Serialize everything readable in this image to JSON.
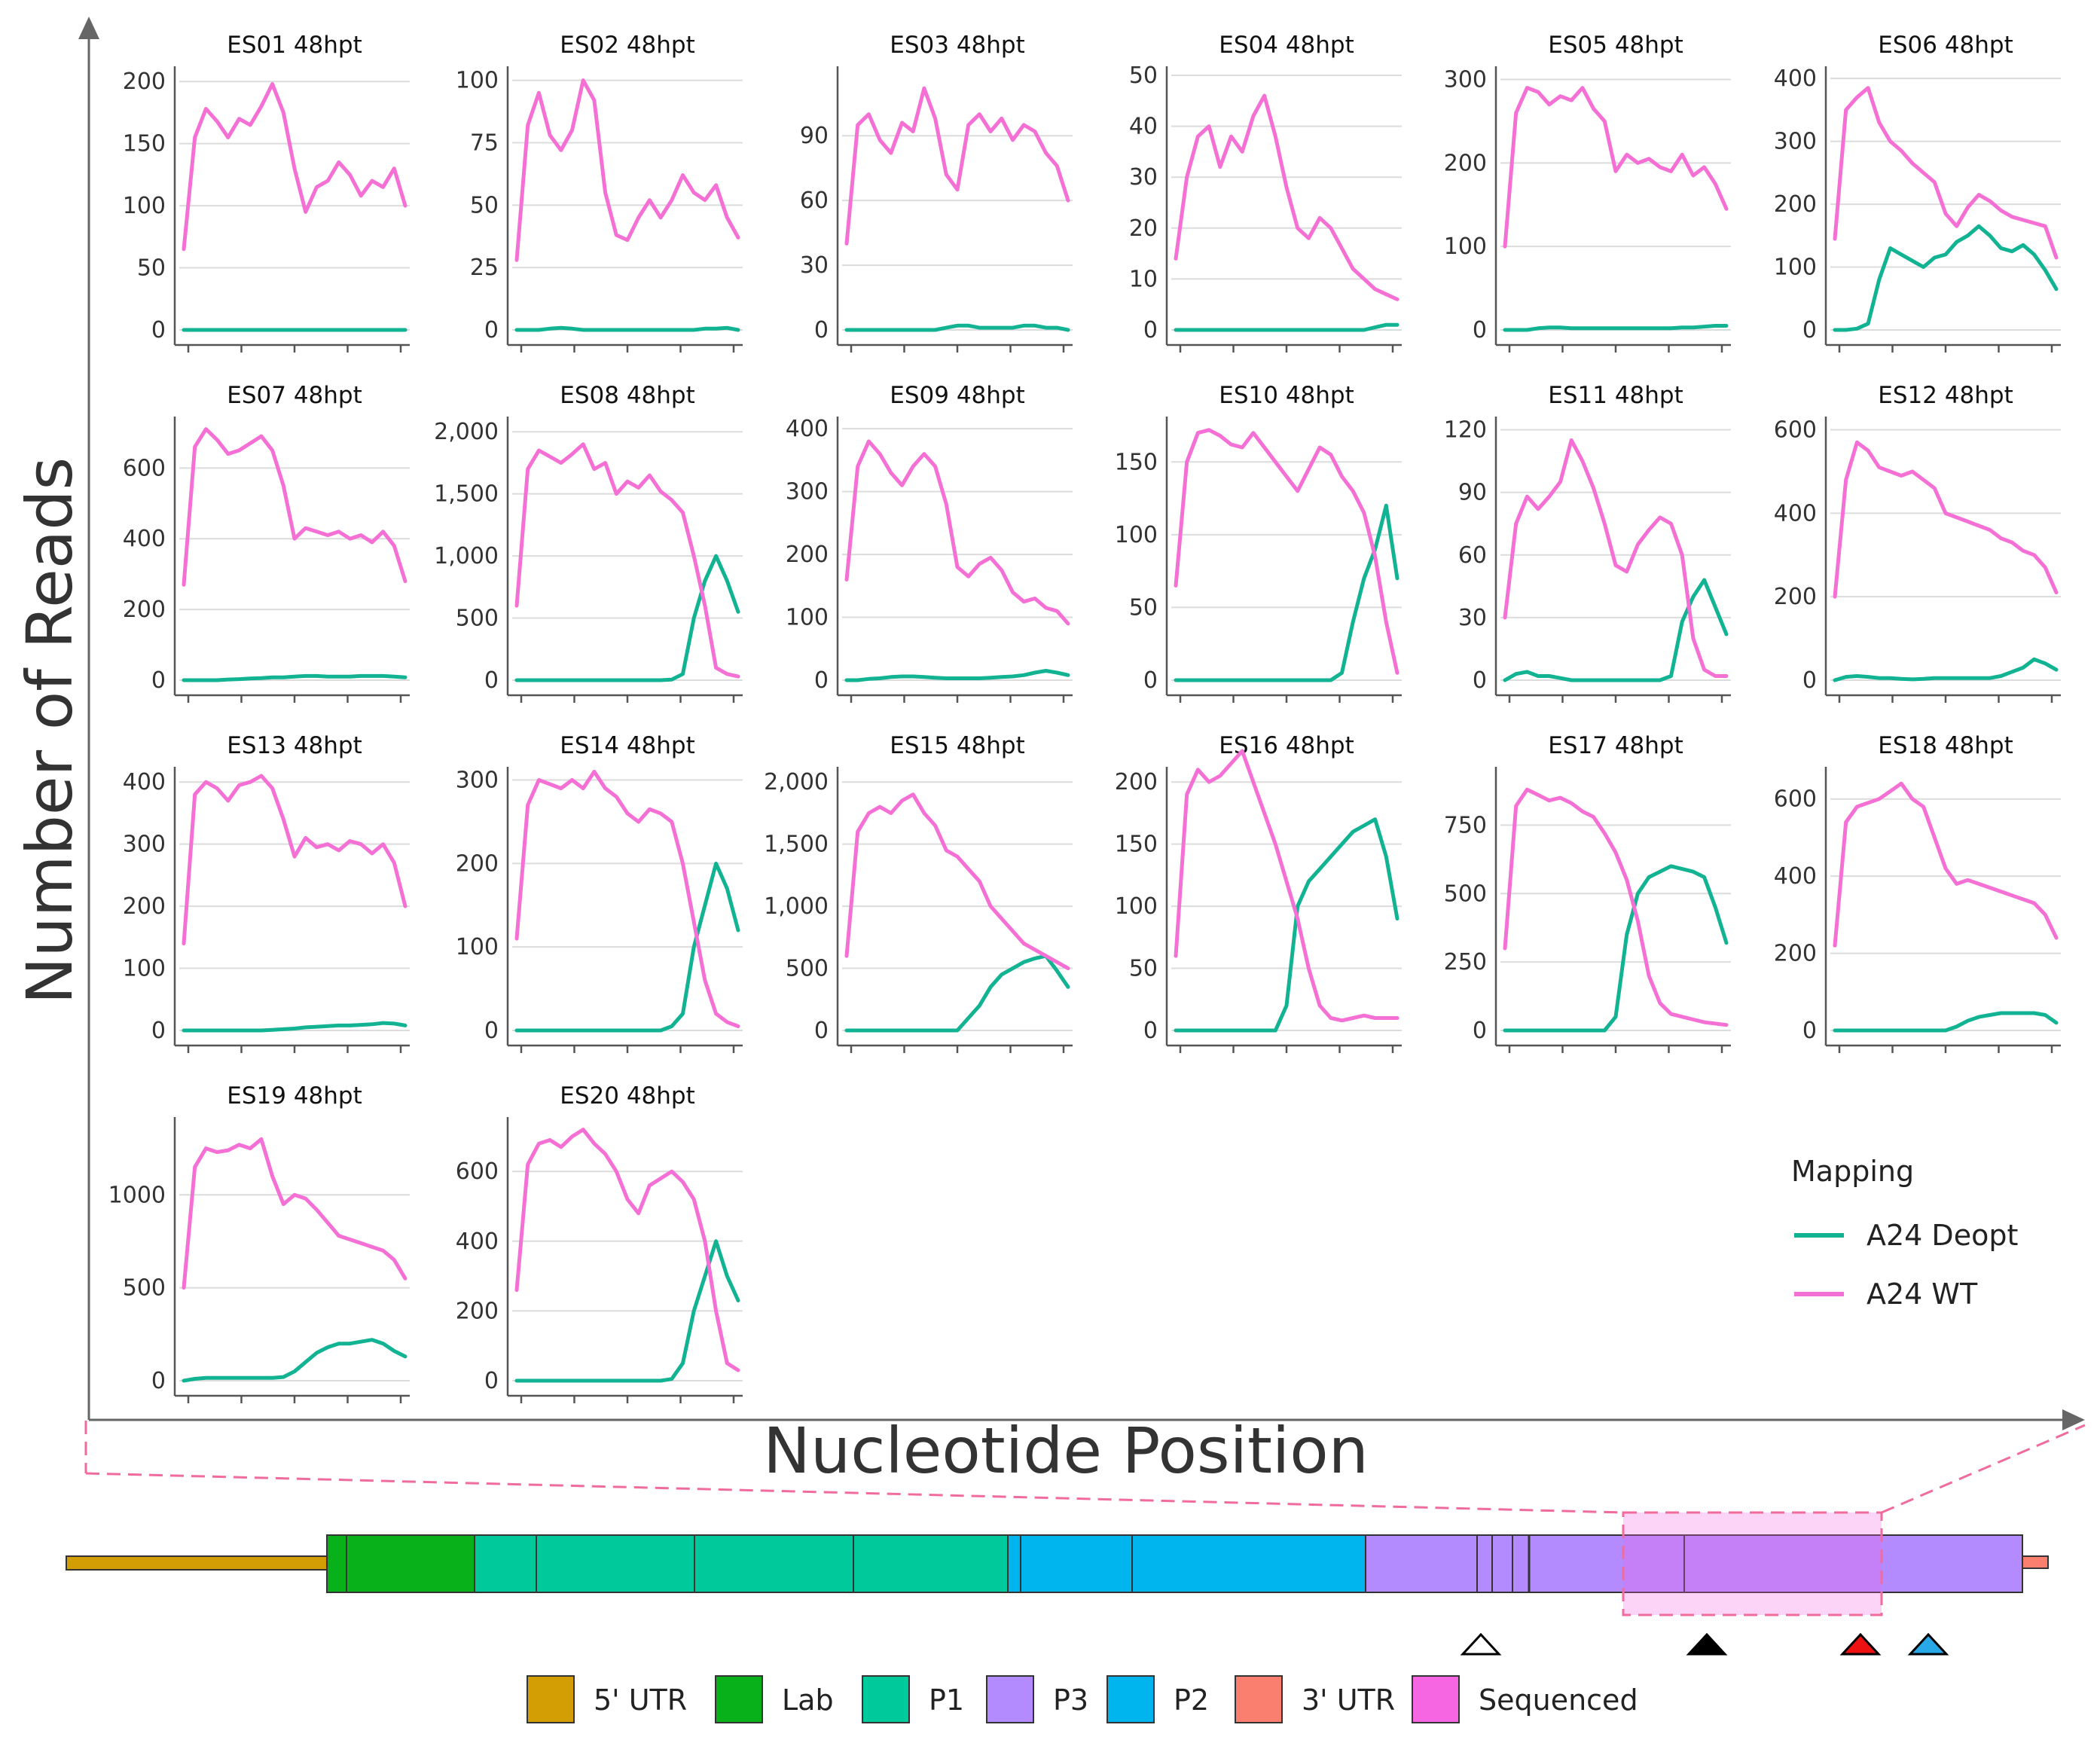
{
  "chart_data": {
    "type": "line",
    "ylabel": "Number of Reads",
    "xlabel": "Nucleotide Position",
    "series_names": [
      "A24 Deopt",
      "A24 WT"
    ],
    "colors": {
      "A24 Deopt": "#11b393",
      "A24 WT": "#f570d5"
    },
    "legend": {
      "title": "Mapping",
      "entries": [
        "A24 Deopt",
        "A24 WT"
      ]
    },
    "panels": [
      {
        "title": "ES01 48hpt",
        "yticks": [
          "0",
          "50",
          "100",
          "150",
          "200"
        ],
        "ymax": 205,
        "wt": [
          65,
          155,
          178,
          168,
          155,
          170,
          165,
          180,
          198,
          175,
          130,
          95,
          115,
          120,
          135,
          125,
          108,
          120,
          115,
          130,
          100
        ],
        "deopt": [
          0,
          0,
          0,
          0,
          0,
          0,
          0,
          0,
          0,
          0,
          0,
          0,
          0,
          0,
          0,
          0,
          0,
          0,
          0,
          0,
          0
        ]
      },
      {
        "title": "ES02 48hpt",
        "yticks": [
          "0",
          "25",
          "50",
          "75",
          "100"
        ],
        "ymax": 102,
        "wt": [
          28,
          82,
          95,
          78,
          72,
          80,
          100,
          92,
          55,
          38,
          36,
          45,
          52,
          45,
          52,
          62,
          55,
          52,
          58,
          45,
          37
        ],
        "deopt": [
          0,
          0,
          0,
          0.5,
          0.8,
          0.5,
          0,
          0,
          0,
          0,
          0,
          0,
          0,
          0,
          0,
          0,
          0,
          0.5,
          0.5,
          0.8,
          0
        ]
      },
      {
        "title": "ES03 48hpt",
        "yticks": [
          "0",
          "30",
          "60",
          "90"
        ],
        "ymax": 118,
        "wt": [
          40,
          95,
          100,
          88,
          82,
          96,
          92,
          112,
          98,
          72,
          65,
          95,
          100,
          92,
          98,
          88,
          95,
          92,
          82,
          76,
          60
        ],
        "deopt": [
          0,
          0,
          0,
          0,
          0,
          0,
          0,
          0,
          0,
          1,
          2,
          2,
          1,
          1,
          1,
          1,
          2,
          2,
          1,
          1,
          0
        ]
      },
      {
        "title": "ES04 48hpt",
        "yticks": [
          "0",
          "10",
          "20",
          "30",
          "40",
          "50"
        ],
        "ymax": 50,
        "wt": [
          14,
          30,
          38,
          40,
          32,
          38,
          35,
          42,
          46,
          38,
          28,
          20,
          18,
          22,
          20,
          16,
          12,
          10,
          8,
          7,
          6
        ],
        "deopt": [
          0,
          0,
          0,
          0,
          0,
          0,
          0,
          0,
          0,
          0,
          0,
          0,
          0,
          0,
          0,
          0,
          0,
          0,
          0.5,
          1,
          1
        ]
      },
      {
        "title": "ES05 48hpt",
        "yticks": [
          "0",
          "100",
          "200",
          "300"
        ],
        "ymax": 305,
        "wt": [
          100,
          260,
          290,
          285,
          270,
          280,
          275,
          290,
          265,
          250,
          190,
          210,
          200,
          205,
          195,
          190,
          210,
          185,
          195,
          175,
          145
        ],
        "deopt": [
          0,
          0,
          0,
          2,
          3,
          3,
          2,
          2,
          2,
          2,
          2,
          2,
          2,
          2,
          2,
          2,
          3,
          3,
          4,
          5,
          5
        ]
      },
      {
        "title": "ES06 48hpt",
        "yticks": [
          "0",
          "100",
          "200",
          "300",
          "400"
        ],
        "ymax": 405,
        "wt": [
          145,
          350,
          370,
          385,
          330,
          300,
          285,
          265,
          250,
          235,
          185,
          165,
          195,
          215,
          205,
          190,
          180,
          175,
          170,
          165,
          115
        ],
        "deopt": [
          0,
          0,
          2,
          10,
          80,
          130,
          120,
          110,
          100,
          115,
          120,
          140,
          150,
          165,
          150,
          130,
          125,
          135,
          120,
          95,
          65
        ]
      },
      {
        "title": "ES07 48hpt",
        "yticks": [
          "0",
          "200",
          "400",
          "600"
        ],
        "ymax": 720,
        "wt": [
          270,
          660,
          710,
          680,
          640,
          650,
          670,
          690,
          650,
          550,
          400,
          430,
          420,
          410,
          420,
          400,
          410,
          390,
          420,
          380,
          280
        ],
        "deopt": [
          0,
          0,
          0,
          0,
          2,
          3,
          5,
          6,
          8,
          8,
          10,
          12,
          12,
          10,
          10,
          10,
          12,
          12,
          12,
          10,
          8
        ]
      },
      {
        "title": "ES08 48hpt",
        "yticks": [
          "0",
          "500",
          "1,000",
          "1,500",
          "2,000"
        ],
        "ymax": 2050,
        "wt": [
          600,
          1700,
          1850,
          1800,
          1750,
          1820,
          1900,
          1700,
          1750,
          1500,
          1600,
          1550,
          1650,
          1520,
          1450,
          1350,
          1000,
          600,
          100,
          50,
          30
        ],
        "deopt": [
          0,
          0,
          0,
          0,
          0,
          0,
          0,
          0,
          0,
          0,
          0,
          0,
          0,
          0,
          5,
          50,
          500,
          800,
          1000,
          800,
          550
        ]
      },
      {
        "title": "ES09 48hpt",
        "yticks": [
          "0",
          "100",
          "200",
          "300",
          "400"
        ],
        "ymax": 405,
        "wt": [
          160,
          340,
          380,
          360,
          330,
          310,
          340,
          360,
          340,
          280,
          180,
          165,
          185,
          195,
          175,
          140,
          125,
          130,
          115,
          110,
          90
        ],
        "deopt": [
          0,
          0,
          2,
          3,
          5,
          6,
          6,
          5,
          4,
          3,
          3,
          3,
          3,
          4,
          5,
          6,
          8,
          12,
          15,
          12,
          8
        ]
      },
      {
        "title": "ES10 48hpt",
        "yticks": [
          "0",
          "50",
          "100",
          "150"
        ],
        "ymax": 175,
        "wt": [
          65,
          150,
          170,
          172,
          168,
          162,
          160,
          170,
          160,
          150,
          140,
          130,
          145,
          160,
          155,
          140,
          130,
          115,
          85,
          40,
          5
        ],
        "deopt": [
          0,
          0,
          0,
          0,
          0,
          0,
          0,
          0,
          0,
          0,
          0,
          0,
          0,
          0,
          0,
          5,
          40,
          70,
          90,
          120,
          70
        ]
      },
      {
        "title": "ES11 48hpt",
        "yticks": [
          "0",
          "30",
          "60",
          "90",
          "120"
        ],
        "ymax": 122,
        "wt": [
          30,
          75,
          88,
          82,
          88,
          95,
          115,
          105,
          92,
          75,
          55,
          52,
          65,
          72,
          78,
          75,
          60,
          20,
          5,
          2,
          2
        ],
        "deopt": [
          0,
          3,
          4,
          2,
          2,
          1,
          0,
          0,
          0,
          0,
          0,
          0,
          0,
          0,
          0,
          2,
          28,
          40,
          48,
          35,
          22
        ]
      },
      {
        "title": "ES12 48hpt",
        "yticks": [
          "0",
          "200",
          "400",
          "600"
        ],
        "ymax": 610,
        "wt": [
          200,
          480,
          570,
          550,
          510,
          500,
          490,
          500,
          480,
          460,
          400,
          390,
          380,
          370,
          360,
          340,
          330,
          310,
          300,
          270,
          210
        ],
        "deopt": [
          0,
          8,
          10,
          8,
          5,
          5,
          3,
          2,
          3,
          5,
          5,
          5,
          5,
          5,
          5,
          10,
          20,
          30,
          50,
          40,
          25
        ]
      },
      {
        "title": "ES13 48hpt",
        "yticks": [
          "0",
          "100",
          "200",
          "300",
          "400"
        ],
        "ymax": 410,
        "wt": [
          140,
          380,
          400,
          390,
          370,
          395,
          400,
          410,
          390,
          340,
          280,
          310,
          295,
          300,
          290,
          305,
          300,
          285,
          300,
          270,
          200
        ],
        "deopt": [
          0,
          0,
          0,
          0,
          0,
          0,
          0,
          0,
          1,
          2,
          3,
          5,
          6,
          7,
          8,
          8,
          9,
          10,
          12,
          11,
          8
        ]
      },
      {
        "title": "ES14 48hpt",
        "yticks": [
          "0",
          "100",
          "200",
          "300"
        ],
        "ymax": 305,
        "wt": [
          110,
          270,
          300,
          295,
          290,
          300,
          290,
          310,
          290,
          280,
          260,
          250,
          265,
          260,
          250,
          200,
          130,
          60,
          20,
          10,
          5
        ],
        "deopt": [
          0,
          0,
          0,
          0,
          0,
          0,
          0,
          0,
          0,
          0,
          0,
          0,
          0,
          0,
          5,
          20,
          100,
          150,
          200,
          170,
          120
        ]
      },
      {
        "title": "ES15 48hpt",
        "yticks": [
          "0",
          "500",
          "1,000",
          "1,500",
          "2,000"
        ],
        "ymax": 2050,
        "wt": [
          600,
          1600,
          1750,
          1800,
          1750,
          1850,
          1900,
          1750,
          1650,
          1450,
          1400,
          1300,
          1200,
          1000,
          900,
          800,
          700,
          650,
          600,
          550,
          500
        ],
        "deopt": [
          0,
          0,
          0,
          0,
          0,
          0,
          0,
          0,
          0,
          0,
          0,
          100,
          200,
          350,
          450,
          500,
          550,
          580,
          600,
          480,
          350
        ]
      },
      {
        "title": "ES16 48hpt",
        "yticks": [
          "0",
          "50",
          "100",
          "150",
          "200"
        ],
        "ymax": 205,
        "wt": [
          60,
          190,
          210,
          200,
          205,
          215,
          225,
          200,
          175,
          150,
          120,
          90,
          50,
          20,
          10,
          8,
          10,
          12,
          10,
          10,
          10
        ],
        "deopt": [
          0,
          0,
          0,
          0,
          0,
          0,
          0,
          0,
          0,
          0,
          20,
          100,
          120,
          130,
          140,
          150,
          160,
          165,
          170,
          140,
          90
        ]
      },
      {
        "title": "ES17 48hpt",
        "yticks": [
          "0",
          "250",
          "500",
          "750"
        ],
        "ymax": 930,
        "wt": [
          300,
          820,
          880,
          860,
          840,
          850,
          830,
          800,
          780,
          720,
          650,
          550,
          400,
          200,
          100,
          60,
          50,
          40,
          30,
          25,
          20
        ],
        "deopt": [
          0,
          0,
          0,
          0,
          0,
          0,
          0,
          0,
          0,
          0,
          50,
          350,
          500,
          560,
          580,
          600,
          590,
          580,
          560,
          450,
          320
        ]
      },
      {
        "title": "ES18 48hpt",
        "yticks": [
          "0",
          "200",
          "400",
          "600"
        ],
        "ymax": 660,
        "wt": [
          220,
          540,
          580,
          590,
          600,
          620,
          640,
          600,
          580,
          500,
          420,
          380,
          390,
          380,
          370,
          360,
          350,
          340,
          330,
          300,
          240
        ],
        "deopt": [
          0,
          0,
          0,
          0,
          0,
          0,
          0,
          0,
          0,
          0,
          0,
          10,
          25,
          35,
          40,
          45,
          45,
          45,
          45,
          40,
          20
        ]
      },
      {
        "title": "ES19 48hpt",
        "yticks": [
          "0",
          "500",
          "1000"
        ],
        "ymax": 1370,
        "wt": [
          500,
          1150,
          1250,
          1230,
          1240,
          1270,
          1250,
          1300,
          1100,
          950,
          1000,
          980,
          920,
          850,
          780,
          760,
          740,
          720,
          700,
          650,
          550
        ],
        "deopt": [
          0,
          10,
          15,
          15,
          15,
          15,
          15,
          15,
          15,
          20,
          50,
          100,
          150,
          180,
          200,
          200,
          210,
          220,
          200,
          160,
          130
        ]
      },
      {
        "title": "ES20 48hpt",
        "yticks": [
          "0",
          "200",
          "400",
          "600"
        ],
        "ymax": 730,
        "wt": [
          260,
          620,
          680,
          690,
          670,
          700,
          720,
          680,
          650,
          600,
          520,
          480,
          560,
          580,
          600,
          570,
          520,
          400,
          200,
          50,
          30
        ],
        "deopt": [
          0,
          0,
          0,
          0,
          0,
          0,
          0,
          0,
          0,
          0,
          0,
          0,
          0,
          0,
          5,
          50,
          200,
          300,
          400,
          300,
          230
        ]
      }
    ]
  },
  "genome_map": {
    "legend": [
      {
        "label": "5' UTR",
        "color": "#d39e04"
      },
      {
        "label": "Lab",
        "color": "#08b01a"
      },
      {
        "label": "P1",
        "color": "#00c99c"
      },
      {
        "label": "P3",
        "color": "#b48bff"
      },
      {
        "label": "P2",
        "color": "#00b4ee"
      },
      {
        "label": "3' UTR",
        "color": "#fa7f6f"
      },
      {
        "label": "Sequenced",
        "color": "#f666e2"
      }
    ],
    "markers": [
      {
        "name": "open-triangle",
        "fill": "#ffffff"
      },
      {
        "name": "black-triangle",
        "fill": "#000000"
      },
      {
        "name": "red-triangle",
        "fill": "#ee1111"
      },
      {
        "name": "blue-triangle",
        "fill": "#29a8e8"
      }
    ]
  }
}
